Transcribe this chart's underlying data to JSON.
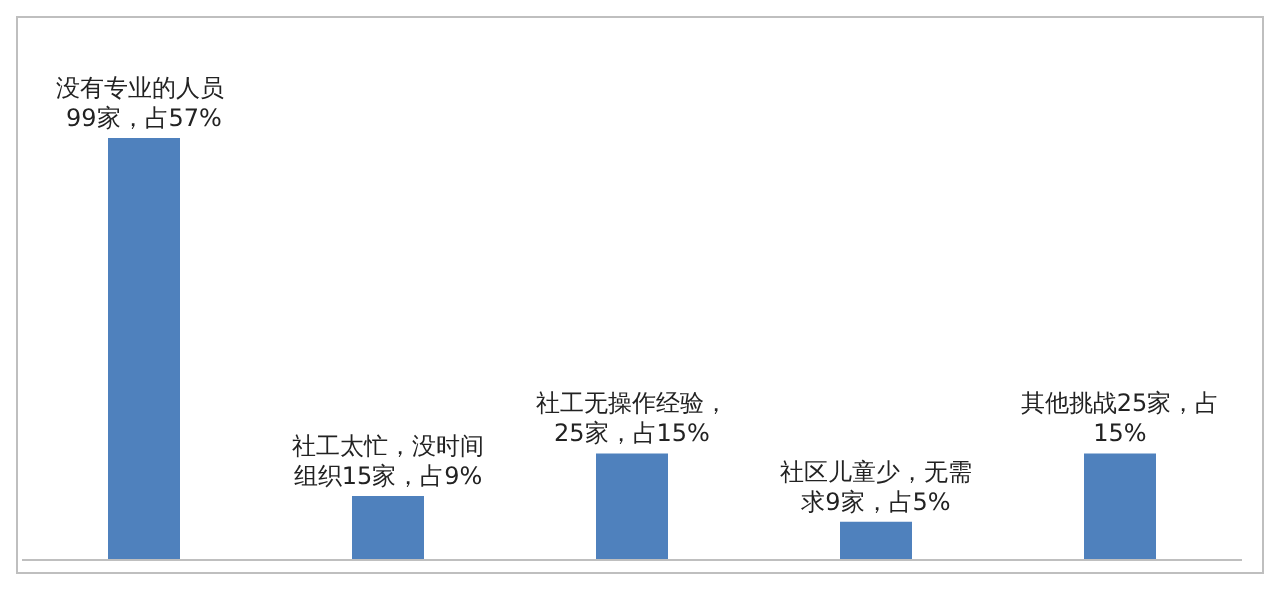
{
  "chart_data": {
    "type": "bar",
    "categories": [
      null,
      null,
      null,
      null,
      null
    ],
    "values": [
      99,
      15,
      25,
      9,
      25
    ],
    "value_labels": [
      "没有专业的人员 99家，占57%",
      "社工太忙，没时间组织15家，占9%",
      "社工无操作经验，25家，占15%",
      "社区儿童少，无需求9家，占5%",
      "其他挑战25家，占15%"
    ],
    "color": "#4f81bd",
    "grid": false,
    "legend": false
  }
}
